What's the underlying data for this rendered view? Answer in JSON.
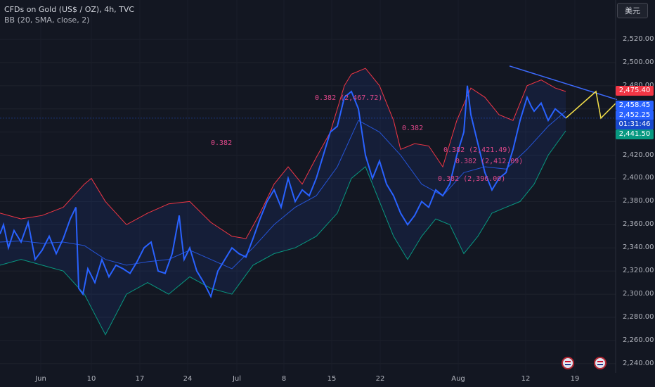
{
  "legend": {
    "title": "CFDs on Gold (US$ / OZ), 4h, TVC",
    "indicator": "BB (20, SMA, close, 2)"
  },
  "currency_button": "美元",
  "colors": {
    "background": "#131722",
    "price_line": "#2962ff",
    "bb_upper": "#f23645",
    "bb_lower": "#089981",
    "bb_basis": "#2962ff",
    "trendline": "#3d6bff",
    "forecast": "#f5e04a",
    "fib_labels": "#e0488a"
  },
  "price_tags": {
    "upper_band": "2,475.40",
    "basis": "2,458.45",
    "last": "2,452.25",
    "countdown": "01:31:46",
    "lower_band": "2,441.50"
  },
  "fib_labels": [
    {
      "text": "0.382 (2,467.72)"
    },
    {
      "text": "0.382"
    },
    {
      "text": "0.382"
    },
    {
      "text": "0.382 (2,421.49)"
    },
    {
      "text": "0.382 (2,412.09)"
    },
    {
      "text": "0.382 (2,396.00)"
    }
  ],
  "chart_data": {
    "type": "line",
    "title": "CFDs on Gold (US$ / OZ), 4h, TVC",
    "x_tick_labels": [
      "Jun",
      "10",
      "17",
      "24",
      "Jul",
      "8",
      "15",
      "22",
      "Aug",
      "12",
      "19"
    ],
    "ylim": [
      2232,
      2537
    ],
    "y_ticks": [
      2240,
      2260,
      2280,
      2300,
      2320,
      2340,
      2360,
      2380,
      2400,
      2420,
      2440,
      2460,
      2480,
      2500,
      2520
    ],
    "series": [
      {
        "role": "price",
        "x": [
          0,
          5,
          12,
          20,
          30,
          40,
          50,
          60,
          70,
          80,
          90,
          100,
          108,
          112,
          118,
          125,
          135,
          145,
          155,
          165,
          175,
          185,
          195,
          205,
          215,
          225,
          235,
          245,
          255,
          258,
          262,
          270,
          280,
          290,
          300,
          310,
          320,
          330,
          340,
          350,
          360,
          370,
          380,
          390,
          400,
          410,
          420,
          430,
          440,
          450,
          460,
          470,
          480,
          490,
          500,
          510,
          520,
          530,
          540,
          550,
          560,
          570,
          580,
          590,
          600,
          610,
          620,
          630,
          640,
          650,
          660,
          665,
          670,
          680,
          690,
          700,
          710,
          720,
          730,
          740,
          750,
          756,
          760,
          770,
          780,
          790,
          800,
          805
        ],
        "values": [
          2352,
          2360,
          2340,
          2355,
          2345,
          2362,
          2330,
          2338,
          2350,
          2335,
          2348,
          2365,
          2375,
          2305,
          2300,
          2322,
          2310,
          2330,
          2315,
          2325,
          2322,
          2318,
          2328,
          2340,
          2345,
          2320,
          2318,
          2335,
          2368,
          2350,
          2330,
          2340,
          2320,
          2310,
          2298,
          2320,
          2330,
          2340,
          2335,
          2332,
          2348,
          2365,
          2380,
          2390,
          2375,
          2400,
          2380,
          2390,
          2385,
          2400,
          2420,
          2440,
          2445,
          2470,
          2475,
          2460,
          2420,
          2400,
          2415,
          2395,
          2385,
          2370,
          2360,
          2368,
          2380,
          2375,
          2390,
          2385,
          2395,
          2420,
          2440,
          2480,
          2455,
          2430,
          2405,
          2390,
          2400,
          2405,
          2425,
          2450,
          2470,
          2462,
          2458,
          2465,
          2450,
          2460,
          2455,
          2452
        ]
      },
      {
        "role": "bb_basis",
        "x": [
          0,
          30,
          60,
          90,
          120,
          150,
          180,
          210,
          240,
          270,
          300,
          330,
          360,
          390,
          420,
          450,
          480,
          510,
          540,
          570,
          600,
          630,
          660,
          690,
          720,
          750,
          780,
          805
        ],
        "values": [
          2345,
          2346,
          2344,
          2345,
          2342,
          2330,
          2325,
          2328,
          2330,
          2338,
          2330,
          2322,
          2340,
          2360,
          2375,
          2385,
          2410,
          2450,
          2440,
          2420,
          2395,
          2385,
          2405,
          2410,
          2408,
          2425,
          2445,
          2458
        ]
      },
      {
        "role": "bb_upper",
        "x": [
          0,
          30,
          60,
          90,
          120,
          130,
          150,
          180,
          210,
          240,
          270,
          300,
          330,
          350,
          370,
          390,
          410,
          430,
          450,
          470,
          490,
          500,
          520,
          540,
          560,
          570,
          590,
          610,
          630,
          650,
          670,
          690,
          710,
          730,
          750,
          770,
          790,
          805
        ],
        "values": [
          2370,
          2365,
          2368,
          2375,
          2395,
          2400,
          2380,
          2360,
          2370,
          2378,
          2380,
          2362,
          2350,
          2348,
          2370,
          2395,
          2410,
          2395,
          2418,
          2440,
          2480,
          2490,
          2495,
          2480,
          2450,
          2425,
          2430,
          2428,
          2410,
          2450,
          2478,
          2470,
          2455,
          2450,
          2480,
          2485,
          2478,
          2475
        ]
      },
      {
        "role": "bb_lower",
        "x": [
          0,
          30,
          60,
          90,
          120,
          150,
          180,
          210,
          240,
          270,
          300,
          330,
          360,
          390,
          420,
          450,
          480,
          500,
          520,
          540,
          560,
          580,
          600,
          620,
          640,
          660,
          680,
          700,
          720,
          740,
          760,
          780,
          805
        ],
        "values": [
          2325,
          2330,
          2325,
          2320,
          2300,
          2265,
          2300,
          2310,
          2300,
          2315,
          2305,
          2300,
          2325,
          2335,
          2340,
          2350,
          2370,
          2400,
          2410,
          2380,
          2350,
          2330,
          2350,
          2365,
          2360,
          2335,
          2350,
          2370,
          2375,
          2380,
          2395,
          2420,
          2441
        ]
      }
    ],
    "annotations": {
      "trendline": [
        [
          725,
          2497
        ],
        [
          878,
          2468
        ]
      ],
      "forecast": [
        [
          805,
          2452
        ],
        [
          848,
          2475
        ],
        [
          855,
          2452
        ],
        [
          878,
          2466
        ]
      ]
    }
  }
}
